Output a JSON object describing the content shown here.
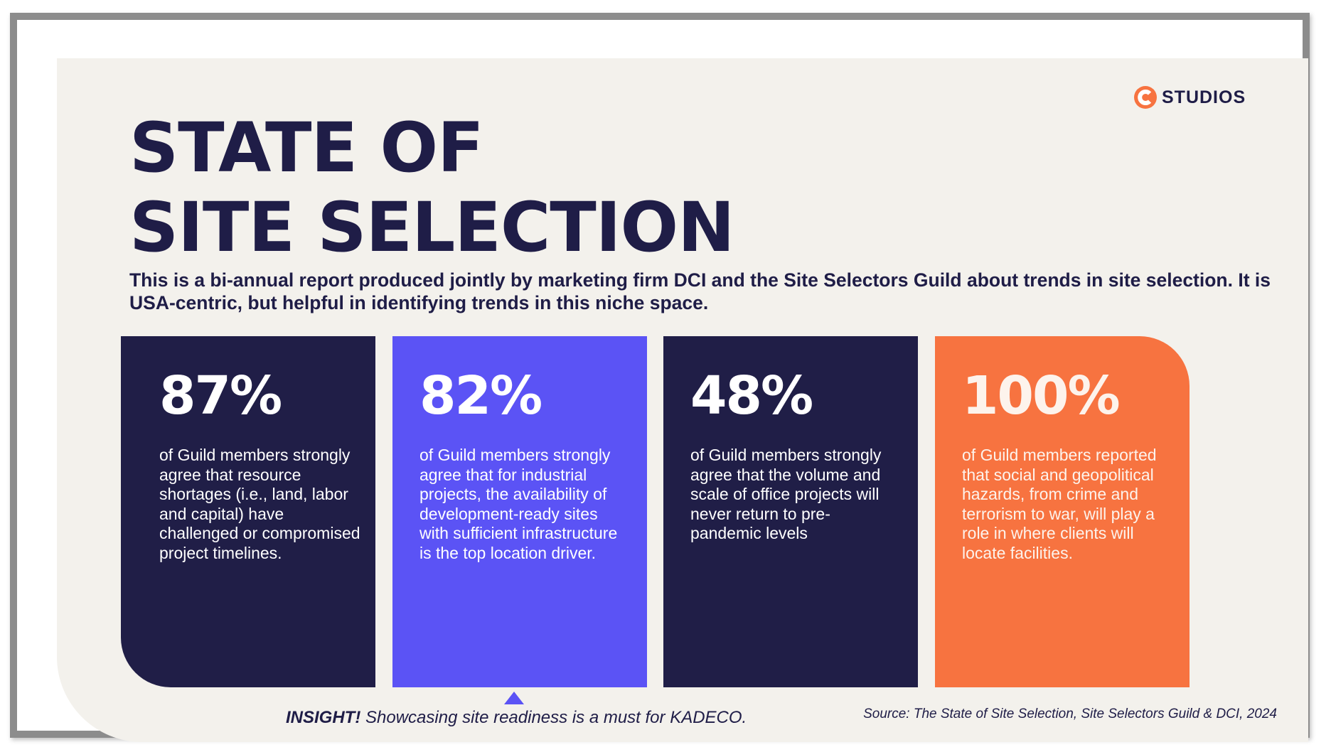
{
  "logo": {
    "text": "STUDIOS",
    "icon": "c-logo-icon",
    "accent": "#f77340"
  },
  "title": {
    "line1": "STATE OF",
    "line2": "SITE SELECTION"
  },
  "intro": "This is a bi-annual report produced jointly by marketing firm DCI and the Site Selectors Guild about trends in site selection. It is USA-centric, but helpful in identifying trends in this niche space.",
  "cards": [
    {
      "stat": "87%",
      "text": "of Guild members strongly agree that resource shortages (i.e., land, labor and capital) have challenged or compromised project timelines.",
      "color": "#201e47"
    },
    {
      "stat": "82%",
      "text": "of Guild members strongly agree that for industrial projects, the availability of development-ready sites with sufficient infrastructure is the top location driver.",
      "color": "#5b53f5"
    },
    {
      "stat": "48%",
      "text": "of Guild members strongly agree that the volume and scale of office projects will never return to pre-pandemic levels",
      "color": "#201e47"
    },
    {
      "stat": "100%",
      "text": "of Guild members reported that social and geopolitical hazards, from crime and terrorism to war, will play a role in where clients will locate facilities.",
      "color": "#f77340"
    }
  ],
  "insight": {
    "label": "INSIGHT!",
    "text": "Showcasing site readiness is a must for KADECO."
  },
  "source": "Source: The State of Site Selection, Site Selectors Guild & DCI, 2024",
  "colors": {
    "navy": "#1f1d47",
    "background": "#f3f1ec",
    "frame": "#8c8c8c"
  }
}
